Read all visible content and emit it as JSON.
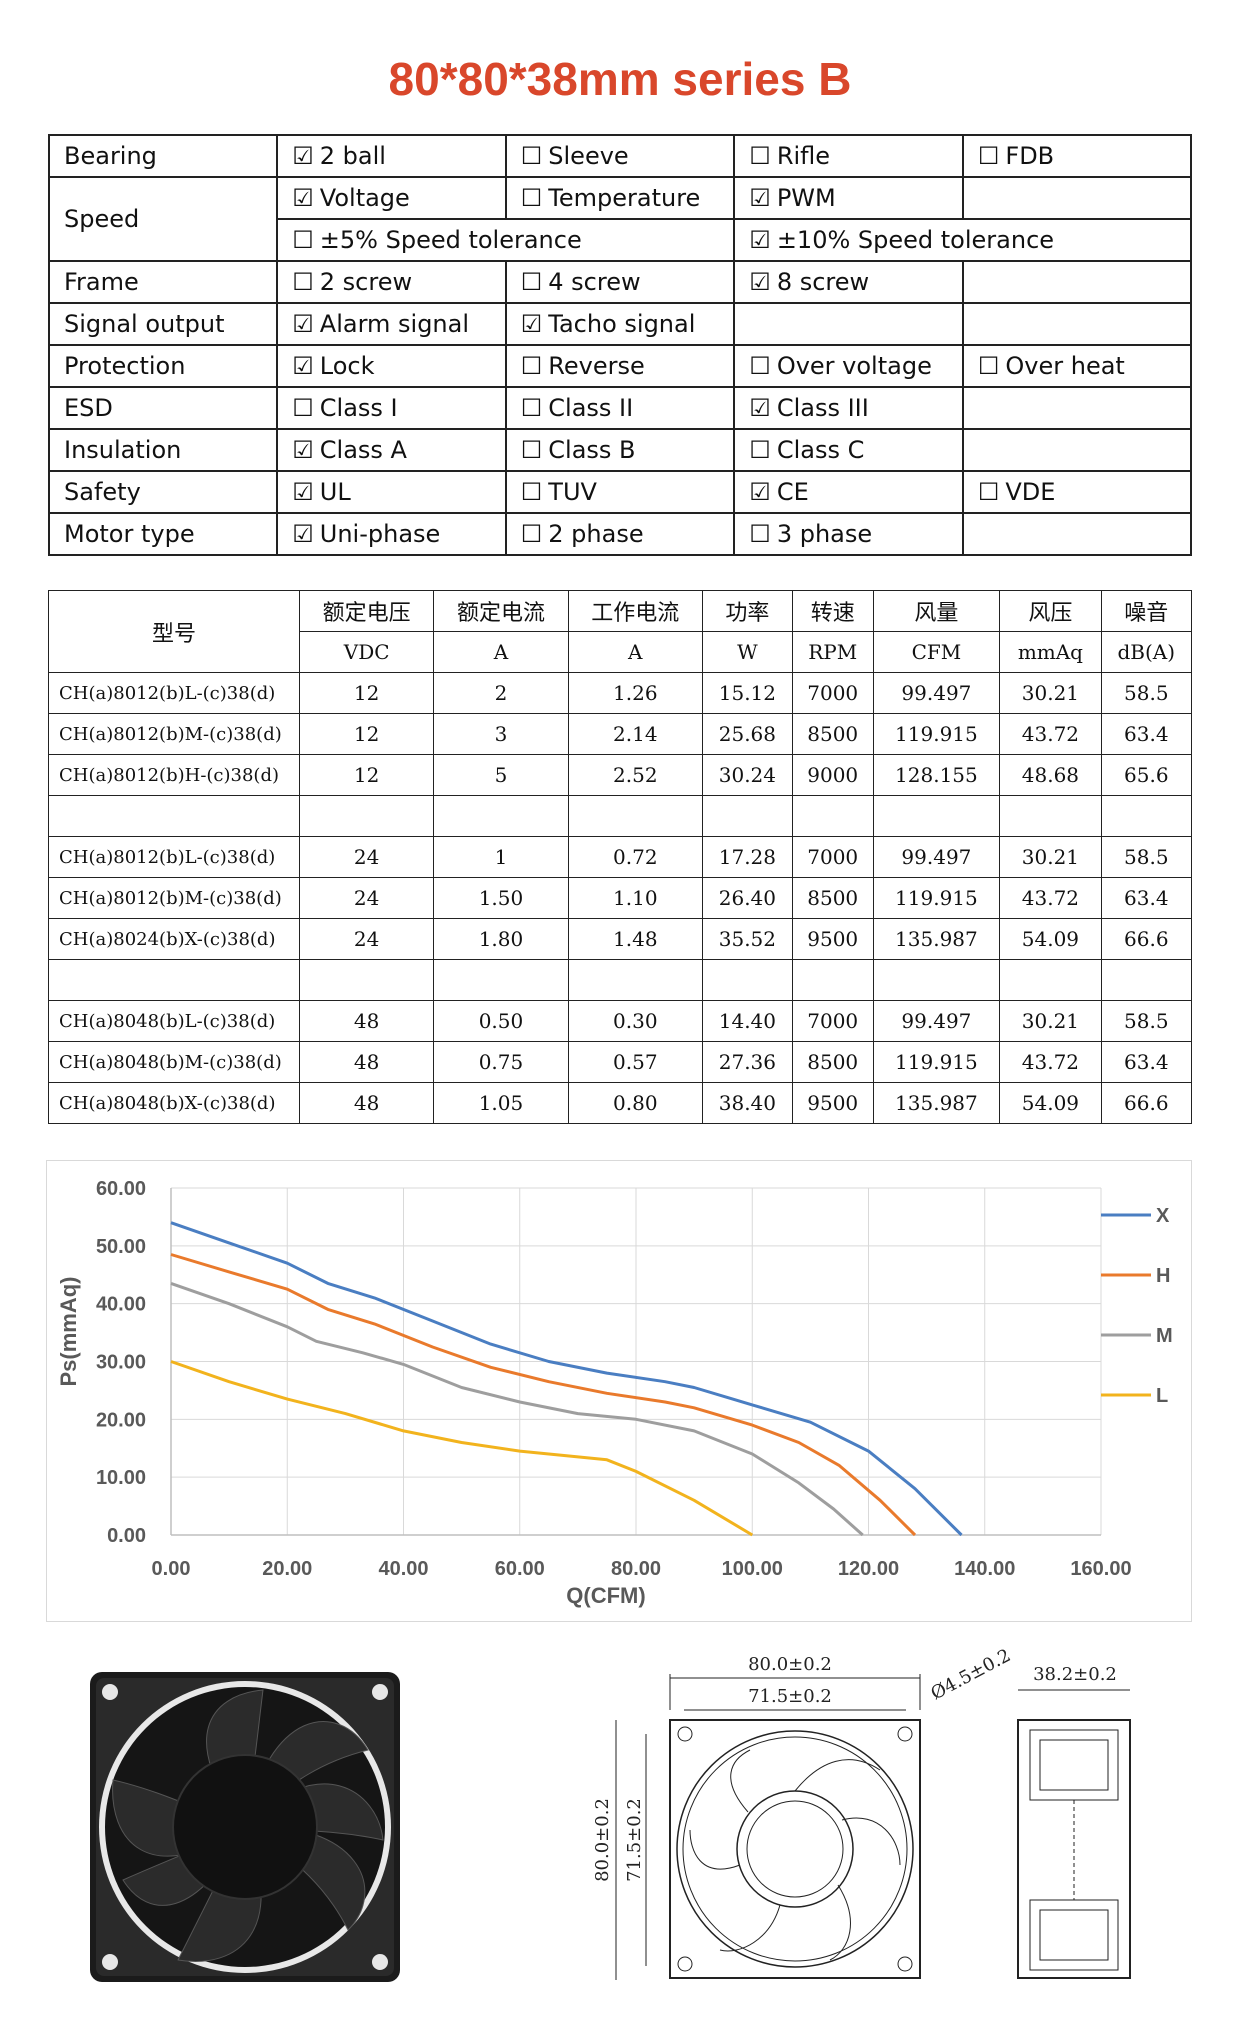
{
  "title": "80*80*38mm series B",
  "features": [
    {
      "label": "Bearing",
      "options": [
        {
          "text": "2 ball",
          "checked": true
        },
        {
          "text": "Sleeve",
          "checked": false
        },
        {
          "text": "Rifle",
          "checked": false
        },
        {
          "text": "FDB",
          "checked": false
        }
      ]
    },
    {
      "label": "Speed",
      "options": [
        {
          "text": "Voltage",
          "checked": true
        },
        {
          "text": "Temperature",
          "checked": false
        },
        {
          "text": "PWM",
          "checked": true
        },
        {
          "text": "",
          "checked": null
        }
      ],
      "options2": [
        {
          "text": "±5% Speed tolerance",
          "checked": false
        },
        {
          "text": "±10% Speed tolerance",
          "checked": true
        }
      ]
    },
    {
      "label": "Frame",
      "options": [
        {
          "text": "2 screw",
          "checked": false
        },
        {
          "text": "4 screw",
          "checked": false
        },
        {
          "text": "8 screw",
          "checked": true
        },
        {
          "text": "",
          "checked": null
        }
      ]
    },
    {
      "label": "Signal output",
      "options": [
        {
          "text": "Alarm signal",
          "checked": true
        },
        {
          "text": "Tacho signal",
          "checked": true
        },
        {
          "text": "",
          "checked": null
        },
        {
          "text": "",
          "checked": null
        }
      ]
    },
    {
      "label": "Protection",
      "options": [
        {
          "text": "Lock",
          "checked": true
        },
        {
          "text": "Reverse",
          "checked": false
        },
        {
          "text": "Over voltage",
          "checked": false
        },
        {
          "text": "Over heat",
          "checked": false
        }
      ]
    },
    {
      "label": "ESD",
      "options": [
        {
          "text": "Class I",
          "checked": false
        },
        {
          "text": "Class II",
          "checked": false
        },
        {
          "text": "Class III",
          "checked": true
        },
        {
          "text": "",
          "checked": null
        }
      ]
    },
    {
      "label": "Insulation",
      "options": [
        {
          "text": "Class A",
          "checked": true
        },
        {
          "text": "Class B",
          "checked": false
        },
        {
          "text": "Class C",
          "checked": false
        },
        {
          "text": "",
          "checked": null
        }
      ]
    },
    {
      "label": "Safety",
      "options": [
        {
          "text": "UL",
          "checked": true
        },
        {
          "text": "TUV",
          "checked": false
        },
        {
          "text": "CE",
          "checked": true
        },
        {
          "text": "VDE",
          "checked": false
        }
      ]
    },
    {
      "label": "Motor type",
      "options": [
        {
          "text": "Uni-phase",
          "checked": true
        },
        {
          "text": "2 phase",
          "checked": false
        },
        {
          "text": "3 phase",
          "checked": false
        },
        {
          "text": "",
          "checked": null
        }
      ]
    }
  ],
  "check_glyphs": {
    "checked": "☑",
    "unchecked": "☐"
  },
  "spec_table": {
    "model_header": "型号",
    "headers": [
      "额定电压",
      "额定电流",
      "工作电流",
      "功率",
      "转速",
      "风量",
      "风压",
      "噪音"
    ],
    "units": [
      "VDC",
      "A",
      "A",
      "W",
      "RPM",
      "CFM",
      "mmAq",
      "dB(A)"
    ],
    "rows": [
      [
        "CH(a)8012(b)L-(c)38(d)",
        "12",
        "2",
        "1.26",
        "15.12",
        "7000",
        "99.497",
        "30.21",
        "58.5"
      ],
      [
        "CH(a)8012(b)M-(c)38(d)",
        "12",
        "3",
        "2.14",
        "25.68",
        "8500",
        "119.915",
        "43.72",
        "63.4"
      ],
      [
        "CH(a)8012(b)H-(c)38(d)",
        "12",
        "5",
        "2.52",
        "30.24",
        "9000",
        "128.155",
        "48.68",
        "65.6"
      ],
      [
        "",
        "",
        "",
        "",
        "",
        "",
        "",
        "",
        ""
      ],
      [
        "CH(a)8012(b)L-(c)38(d)",
        "24",
        "1",
        "0.72",
        "17.28",
        "7000",
        "99.497",
        "30.21",
        "58.5"
      ],
      [
        "CH(a)8012(b)M-(c)38(d)",
        "24",
        "1.50",
        "1.10",
        "26.40",
        "8500",
        "119.915",
        "43.72",
        "63.4"
      ],
      [
        "CH(a)8024(b)X-(c)38(d)",
        "24",
        "1.80",
        "1.48",
        "35.52",
        "9500",
        "135.987",
        "54.09",
        "66.6"
      ],
      [
        "",
        "",
        "",
        "",
        "",
        "",
        "",
        "",
        ""
      ],
      [
        "CH(a)8048(b)L-(c)38(d)",
        "48",
        "0.50",
        "0.30",
        "14.40",
        "7000",
        "99.497",
        "30.21",
        "58.5"
      ],
      [
        "CH(a)8048(b)M-(c)38(d)",
        "48",
        "0.75",
        "0.57",
        "27.36",
        "8500",
        "119.915",
        "43.72",
        "63.4"
      ],
      [
        "CH(a)8048(b)X-(c)38(d)",
        "48",
        "1.05",
        "0.80",
        "38.40",
        "9500",
        "135.987",
        "54.09",
        "66.6"
      ]
    ]
  },
  "chart_data": {
    "type": "line",
    "title": "",
    "xlabel": "Q(CFM)",
    "ylabel": "Ps(mmAq)",
    "xlim": [
      0,
      160
    ],
    "ylim": [
      0,
      60
    ],
    "xticks": [
      "0.00",
      "20.00",
      "40.00",
      "60.00",
      "80.00",
      "100.00",
      "120.00",
      "140.00",
      "160.00"
    ],
    "yticks": [
      "0.00",
      "10.00",
      "20.00",
      "30.00",
      "40.00",
      "50.00",
      "60.00"
    ],
    "grid": true,
    "legend_position": "right",
    "series": [
      {
        "name": "X",
        "color": "#4a7ec2",
        "x": [
          0,
          10,
          20,
          27,
          35,
          45,
          55,
          65,
          75,
          85,
          90,
          100,
          110,
          120,
          128,
          136
        ],
        "y": [
          54,
          50.5,
          47,
          43.5,
          41,
          37,
          33,
          30,
          28,
          26.5,
          25.5,
          22.5,
          19.5,
          14.5,
          8,
          0
        ]
      },
      {
        "name": "H",
        "color": "#e97a2c",
        "x": [
          0,
          10,
          20,
          27,
          35,
          45,
          55,
          65,
          75,
          85,
          90,
          100,
          108,
          115,
          122,
          128
        ],
        "y": [
          48.5,
          45.5,
          42.5,
          39,
          36.5,
          32.5,
          29,
          26.5,
          24.5,
          23,
          22,
          19,
          16,
          12,
          6,
          0
        ]
      },
      {
        "name": "M",
        "color": "#9e9e9e",
        "x": [
          0,
          10,
          20,
          25,
          33,
          40,
          50,
          60,
          70,
          80,
          90,
          100,
          108,
          114,
          119
        ],
        "y": [
          43.5,
          40,
          36,
          33.5,
          31.5,
          29.5,
          25.5,
          23,
          21,
          20,
          18,
          14,
          9,
          4.5,
          0
        ]
      },
      {
        "name": "L",
        "color": "#f2b31d",
        "x": [
          0,
          10,
          20,
          30,
          40,
          50,
          60,
          70,
          75,
          80,
          90,
          100
        ],
        "y": [
          30,
          26.5,
          23.5,
          21,
          18,
          16,
          14.5,
          13.5,
          13,
          11,
          6,
          0
        ]
      }
    ]
  },
  "drawings": {
    "dim_width": "80.0±0.2",
    "dim_hole_pitch": "71.5±0.2",
    "dim_hole_dia": "Ø4.5±0.2",
    "dim_height": "80.0±0.2",
    "dim_hole_pitch_v": "71.5±0.2",
    "dim_thickness": "38.2±0.2"
  }
}
